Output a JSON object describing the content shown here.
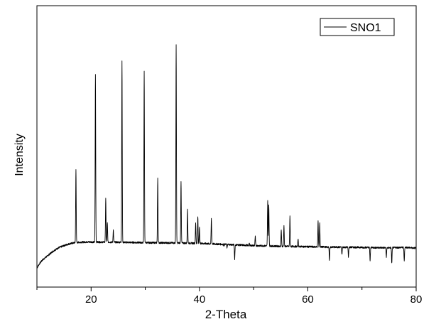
{
  "chart_data": {
    "type": "line",
    "title": "",
    "xlabel": "2-Theta",
    "ylabel": "Intensity",
    "xlim": [
      10,
      80
    ],
    "ylim": [
      0,
      1.0
    ],
    "x_ticks": [
      20,
      40,
      60,
      80
    ],
    "y_ticks_labeled": false,
    "grid": false,
    "legend": {
      "position": "top-right"
    },
    "colors": {
      "line": "#000000",
      "axes": "#000000"
    },
    "baseline": [
      [
        10.0,
        0.0
      ],
      [
        10.5,
        0.02
      ],
      [
        11.0,
        0.035
      ],
      [
        11.5,
        0.045
      ],
      [
        12.0,
        0.055
      ],
      [
        12.5,
        0.065
      ],
      [
        13.0,
        0.075
      ],
      [
        13.5,
        0.083
      ],
      [
        14.0,
        0.09
      ],
      [
        14.5,
        0.095
      ],
      [
        15.0,
        0.1
      ],
      [
        16.0,
        0.108
      ],
      [
        17.0,
        0.113
      ],
      [
        18.0,
        0.115
      ],
      [
        19.0,
        0.116
      ],
      [
        20.0,
        0.116
      ],
      [
        25.0,
        0.115
      ],
      [
        30.0,
        0.113
      ],
      [
        35.0,
        0.112
      ],
      [
        40.0,
        0.11
      ],
      [
        45.0,
        0.105
      ],
      [
        50.0,
        0.1
      ],
      [
        55.0,
        0.097
      ],
      [
        60.0,
        0.095
      ],
      [
        65.0,
        0.093
      ],
      [
        70.0,
        0.092
      ],
      [
        75.0,
        0.09
      ],
      [
        78.0,
        0.092
      ],
      [
        79.0,
        0.09
      ],
      [
        80.0,
        0.089
      ]
    ],
    "series": [
      {
        "name": "SNO1",
        "peaks": [
          [
            17.2,
            0.44
          ],
          [
            20.8,
            0.87
          ],
          [
            22.7,
            0.31
          ],
          [
            23.0,
            0.2
          ],
          [
            24.1,
            0.17
          ],
          [
            25.7,
            0.93
          ],
          [
            29.8,
            0.88
          ],
          [
            32.3,
            0.4
          ],
          [
            35.7,
            1.0
          ],
          [
            36.6,
            0.39
          ],
          [
            37.8,
            0.26
          ],
          [
            39.3,
            0.2
          ],
          [
            39.7,
            0.23
          ],
          [
            40.0,
            0.18
          ],
          [
            42.2,
            0.22
          ],
          [
            44.5,
            0.1
          ],
          [
            45.1,
            0.09
          ],
          [
            46.5,
            0.04
          ],
          [
            49.2,
            0.11
          ],
          [
            50.3,
            0.14
          ],
          [
            52.6,
            0.3
          ],
          [
            52.8,
            0.28
          ],
          [
            55.1,
            0.17
          ],
          [
            55.6,
            0.19
          ],
          [
            56.7,
            0.23
          ],
          [
            58.2,
            0.13
          ],
          [
            61.9,
            0.21
          ],
          [
            62.2,
            0.2
          ],
          [
            64.0,
            0.03
          ],
          [
            66.3,
            0.06
          ],
          [
            67.5,
            0.05
          ],
          [
            70.2,
            0.09
          ],
          [
            71.5,
            0.03
          ],
          [
            72.5,
            0.09
          ],
          [
            74.5,
            0.05
          ],
          [
            75.5,
            0.02
          ],
          [
            77.8,
            0.03
          ]
        ]
      }
    ]
  }
}
